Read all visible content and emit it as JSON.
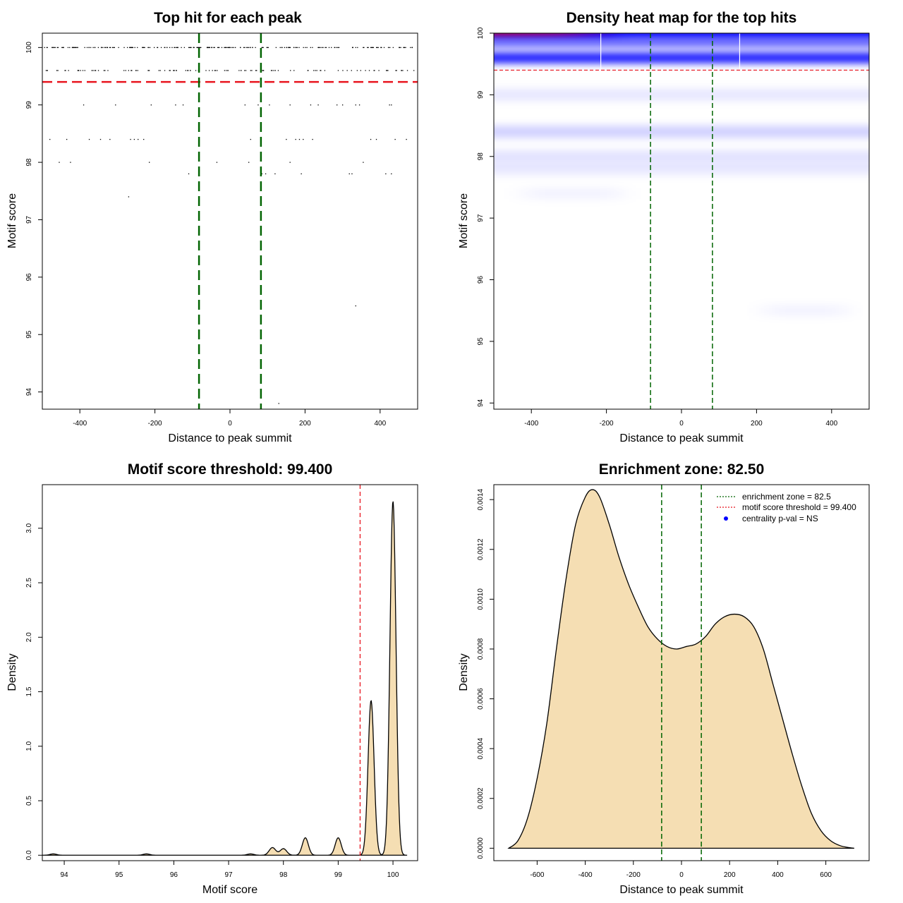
{
  "panels": {
    "scatter": {
      "title": "Top hit for each peak"
    },
    "heatmap": {
      "title": "Density heat map for the top hits"
    },
    "score_density": {
      "title": "Motif score threshold: 99.400"
    },
    "distance_density": {
      "title": "Enrichment zone: 82.50"
    }
  },
  "colors": {
    "points": "#000000",
    "threshold_line": "#e8141e",
    "zone_line": "#006400",
    "density_fill": "#f5deb3",
    "heat_low": "#ffffff",
    "heat_mid": "#0000ff",
    "heat_high": "#ff0000"
  },
  "chart_data": [
    {
      "id": "scatter",
      "type": "scatter",
      "title": "Top hit for each peak",
      "xlabel": "Distance to peak summit",
      "ylabel": "Motif score",
      "xlim": [
        -500,
        500
      ],
      "ylim": [
        93.7,
        100.25
      ],
      "xticks": [
        -400,
        -200,
        0,
        200,
        400
      ],
      "yticks": [
        94,
        95,
        96,
        97,
        98,
        99,
        100
      ],
      "threshold": 99.4,
      "zone": [
        -82.5,
        82.5
      ],
      "rows": [
        {
          "y": 100,
          "x_range": [
            -495,
            495
          ],
          "n": 230
        },
        {
          "y": 99.6,
          "x_range": [
            -490,
            495
          ],
          "n": 110
        }
      ],
      "points": [
        {
          "x": -390,
          "y": 99.0
        },
        {
          "x": -305,
          "y": 99.0
        },
        {
          "x": -210,
          "y": 99.0
        },
        {
          "x": -145,
          "y": 99.0
        },
        {
          "x": -125,
          "y": 99.0
        },
        {
          "x": 40,
          "y": 99.0
        },
        {
          "x": 75,
          "y": 99.0
        },
        {
          "x": 105,
          "y": 99.0
        },
        {
          "x": 160,
          "y": 99.0
        },
        {
          "x": 215,
          "y": 99.0
        },
        {
          "x": 235,
          "y": 99.0
        },
        {
          "x": 285,
          "y": 99.0
        },
        {
          "x": 300,
          "y": 99.0
        },
        {
          "x": 335,
          "y": 99.0
        },
        {
          "x": 345,
          "y": 99.0
        },
        {
          "x": 425,
          "y": 99.0
        },
        {
          "x": 430,
          "y": 99.0
        },
        {
          "x": -480,
          "y": 98.4
        },
        {
          "x": -435,
          "y": 98.4
        },
        {
          "x": -375,
          "y": 98.4
        },
        {
          "x": -345,
          "y": 98.4
        },
        {
          "x": -320,
          "y": 98.4
        },
        {
          "x": -265,
          "y": 98.4
        },
        {
          "x": -255,
          "y": 98.4
        },
        {
          "x": -245,
          "y": 98.4
        },
        {
          "x": -230,
          "y": 98.4
        },
        {
          "x": 55,
          "y": 98.4
        },
        {
          "x": 150,
          "y": 98.4
        },
        {
          "x": 175,
          "y": 98.4
        },
        {
          "x": 185,
          "y": 98.4
        },
        {
          "x": 195,
          "y": 98.4
        },
        {
          "x": 220,
          "y": 98.4
        },
        {
          "x": 375,
          "y": 98.4
        },
        {
          "x": 390,
          "y": 98.4
        },
        {
          "x": 440,
          "y": 98.4
        },
        {
          "x": 470,
          "y": 98.4
        },
        {
          "x": -455,
          "y": 98.0
        },
        {
          "x": -425,
          "y": 98.0
        },
        {
          "x": -215,
          "y": 98.0
        },
        {
          "x": -35,
          "y": 98.0
        },
        {
          "x": 50,
          "y": 98.0
        },
        {
          "x": 160,
          "y": 98.0
        },
        {
          "x": 355,
          "y": 98.0
        },
        {
          "x": -110,
          "y": 97.8
        },
        {
          "x": 85,
          "y": 97.8
        },
        {
          "x": 95,
          "y": 97.8
        },
        {
          "x": 120,
          "y": 97.8
        },
        {
          "x": 190,
          "y": 97.8
        },
        {
          "x": 318,
          "y": 97.8
        },
        {
          "x": 325,
          "y": 97.8
        },
        {
          "x": 415,
          "y": 97.8
        },
        {
          "x": 430,
          "y": 97.8
        },
        {
          "x": -270,
          "y": 97.4
        },
        {
          "x": 335,
          "y": 95.5
        },
        {
          "x": 130,
          "y": 93.8
        }
      ]
    },
    {
      "id": "heatmap",
      "type": "heatmap",
      "title": "Density heat map for the top hits",
      "xlabel": "Distance to peak summit",
      "ylabel": "Motif score",
      "xlim": [
        -500,
        500
      ],
      "ylim": [
        93.9,
        100.0
      ],
      "xticks": [
        -400,
        -200,
        0,
        200,
        400
      ],
      "yticks": [
        94,
        95,
        96,
        97,
        98,
        99,
        100
      ],
      "threshold": 99.4,
      "zone": [
        -82.5,
        82.5
      ],
      "vertical_breaks": [
        -215,
        155
      ],
      "bands": [
        {
          "y": 100.0,
          "intensity": 1.0,
          "hot": true,
          "hot_x_max": -250
        },
        {
          "y": 99.85,
          "intensity": 0.55,
          "hot": false
        },
        {
          "y": 99.6,
          "intensity": 0.85,
          "hot": false
        },
        {
          "y": 99.0,
          "intensity": 0.1,
          "hot": false
        },
        {
          "y": 98.4,
          "intensity": 0.2,
          "hot": false
        },
        {
          "y": 98.0,
          "intensity": 0.12,
          "hot": false
        },
        {
          "y": 97.8,
          "intensity": 0.1,
          "hot": false
        },
        {
          "y": 97.4,
          "intensity": 0.05,
          "hot": false,
          "x_range": [
            -420,
            -160
          ]
        },
        {
          "y": 95.5,
          "intensity": 0.05,
          "hot": false,
          "x_range": [
            220,
            440
          ]
        }
      ]
    },
    {
      "id": "score_density",
      "type": "area",
      "title": "Motif score threshold: 99.400",
      "xlabel": "Motif score",
      "ylabel": "Density",
      "xlim": [
        93.6,
        100.45
      ],
      "ylim": [
        -0.05,
        3.4
      ],
      "xticks": [
        94,
        95,
        96,
        97,
        98,
        99,
        100
      ],
      "yticks": [
        0.0,
        0.5,
        1.0,
        1.5,
        2.0,
        2.5,
        3.0
      ],
      "ytick_labels": [
        "0.0",
        "0.5",
        "1.0",
        "1.5",
        "2.0",
        "2.5",
        "3.0"
      ],
      "threshold": 99.4,
      "x_range": [
        93.6,
        100.25
      ],
      "peaks": [
        {
          "x": 93.8,
          "h": 0.012,
          "sd": 0.06
        },
        {
          "x": 95.5,
          "h": 0.012,
          "sd": 0.06
        },
        {
          "x": 97.4,
          "h": 0.012,
          "sd": 0.06
        },
        {
          "x": 97.8,
          "h": 0.07,
          "sd": 0.06
        },
        {
          "x": 98.0,
          "h": 0.06,
          "sd": 0.06
        },
        {
          "x": 98.4,
          "h": 0.16,
          "sd": 0.055
        },
        {
          "x": 99.0,
          "h": 0.16,
          "sd": 0.055
        },
        {
          "x": 99.6,
          "h": 1.42,
          "sd": 0.055
        },
        {
          "x": 100.0,
          "h": 3.25,
          "sd": 0.055
        }
      ]
    },
    {
      "id": "distance_density",
      "type": "area",
      "title": "Enrichment zone: 82.50",
      "xlabel": "Distance to peak summit",
      "ylabel": "Density",
      "xlim": [
        -780,
        780
      ],
      "ylim": [
        -5e-05,
        0.00146
      ],
      "xticks": [
        -600,
        -400,
        -200,
        0,
        200,
        400,
        600
      ],
      "yticks": [
        0,
        0.0002,
        0.0004,
        0.0006,
        0.0008,
        0.001,
        0.0012,
        0.0014
      ],
      "ytick_labels": [
        "0.0000",
        "0.0002",
        "0.0004",
        "0.0006",
        "0.0008",
        "0.0010",
        "0.0012",
        "0.0014"
      ],
      "zone": [
        -82.5,
        82.5
      ],
      "curve": [
        {
          "x": -718,
          "y": 0
        },
        {
          "x": -680,
          "y": 3e-05
        },
        {
          "x": -640,
          "y": 0.00012
        },
        {
          "x": -600,
          "y": 0.00028
        },
        {
          "x": -560,
          "y": 0.0005
        },
        {
          "x": -520,
          "y": 0.0008
        },
        {
          "x": -480,
          "y": 0.00108
        },
        {
          "x": -440,
          "y": 0.0013
        },
        {
          "x": -400,
          "y": 0.00141
        },
        {
          "x": -370,
          "y": 0.00144
        },
        {
          "x": -340,
          "y": 0.00141
        },
        {
          "x": -300,
          "y": 0.0013
        },
        {
          "x": -260,
          "y": 0.00117
        },
        {
          "x": -220,
          "y": 0.00106
        },
        {
          "x": -180,
          "y": 0.00097
        },
        {
          "x": -140,
          "y": 0.00089
        },
        {
          "x": -100,
          "y": 0.00084
        },
        {
          "x": -60,
          "y": 0.00081
        },
        {
          "x": -20,
          "y": 0.0008
        },
        {
          "x": 20,
          "y": 0.00081
        },
        {
          "x": 60,
          "y": 0.00082
        },
        {
          "x": 100,
          "y": 0.00085
        },
        {
          "x": 140,
          "y": 0.0009
        },
        {
          "x": 180,
          "y": 0.00093
        },
        {
          "x": 220,
          "y": 0.00094
        },
        {
          "x": 260,
          "y": 0.00093
        },
        {
          "x": 300,
          "y": 0.00089
        },
        {
          "x": 340,
          "y": 0.0008
        },
        {
          "x": 380,
          "y": 0.00066
        },
        {
          "x": 420,
          "y": 0.00052
        },
        {
          "x": 460,
          "y": 0.00038
        },
        {
          "x": 500,
          "y": 0.00025
        },
        {
          "x": 540,
          "y": 0.00014
        },
        {
          "x": 580,
          "y": 7e-05
        },
        {
          "x": 620,
          "y": 3e-05
        },
        {
          "x": 660,
          "y": 1e-05
        },
        {
          "x": 700,
          "y": 2e-06
        },
        {
          "x": 718,
          "y": 0
        }
      ],
      "legend": {
        "position": "top-right",
        "entries": [
          {
            "label": "enrichment zone = 82.5",
            "kind": "line",
            "color": "#006400"
          },
          {
            "label": "motif score threshold = 99.400",
            "kind": "line",
            "color": "#e8141e"
          },
          {
            "label": "centrality p-val = NS",
            "kind": "point",
            "color": "#0000ff"
          }
        ]
      }
    }
  ]
}
